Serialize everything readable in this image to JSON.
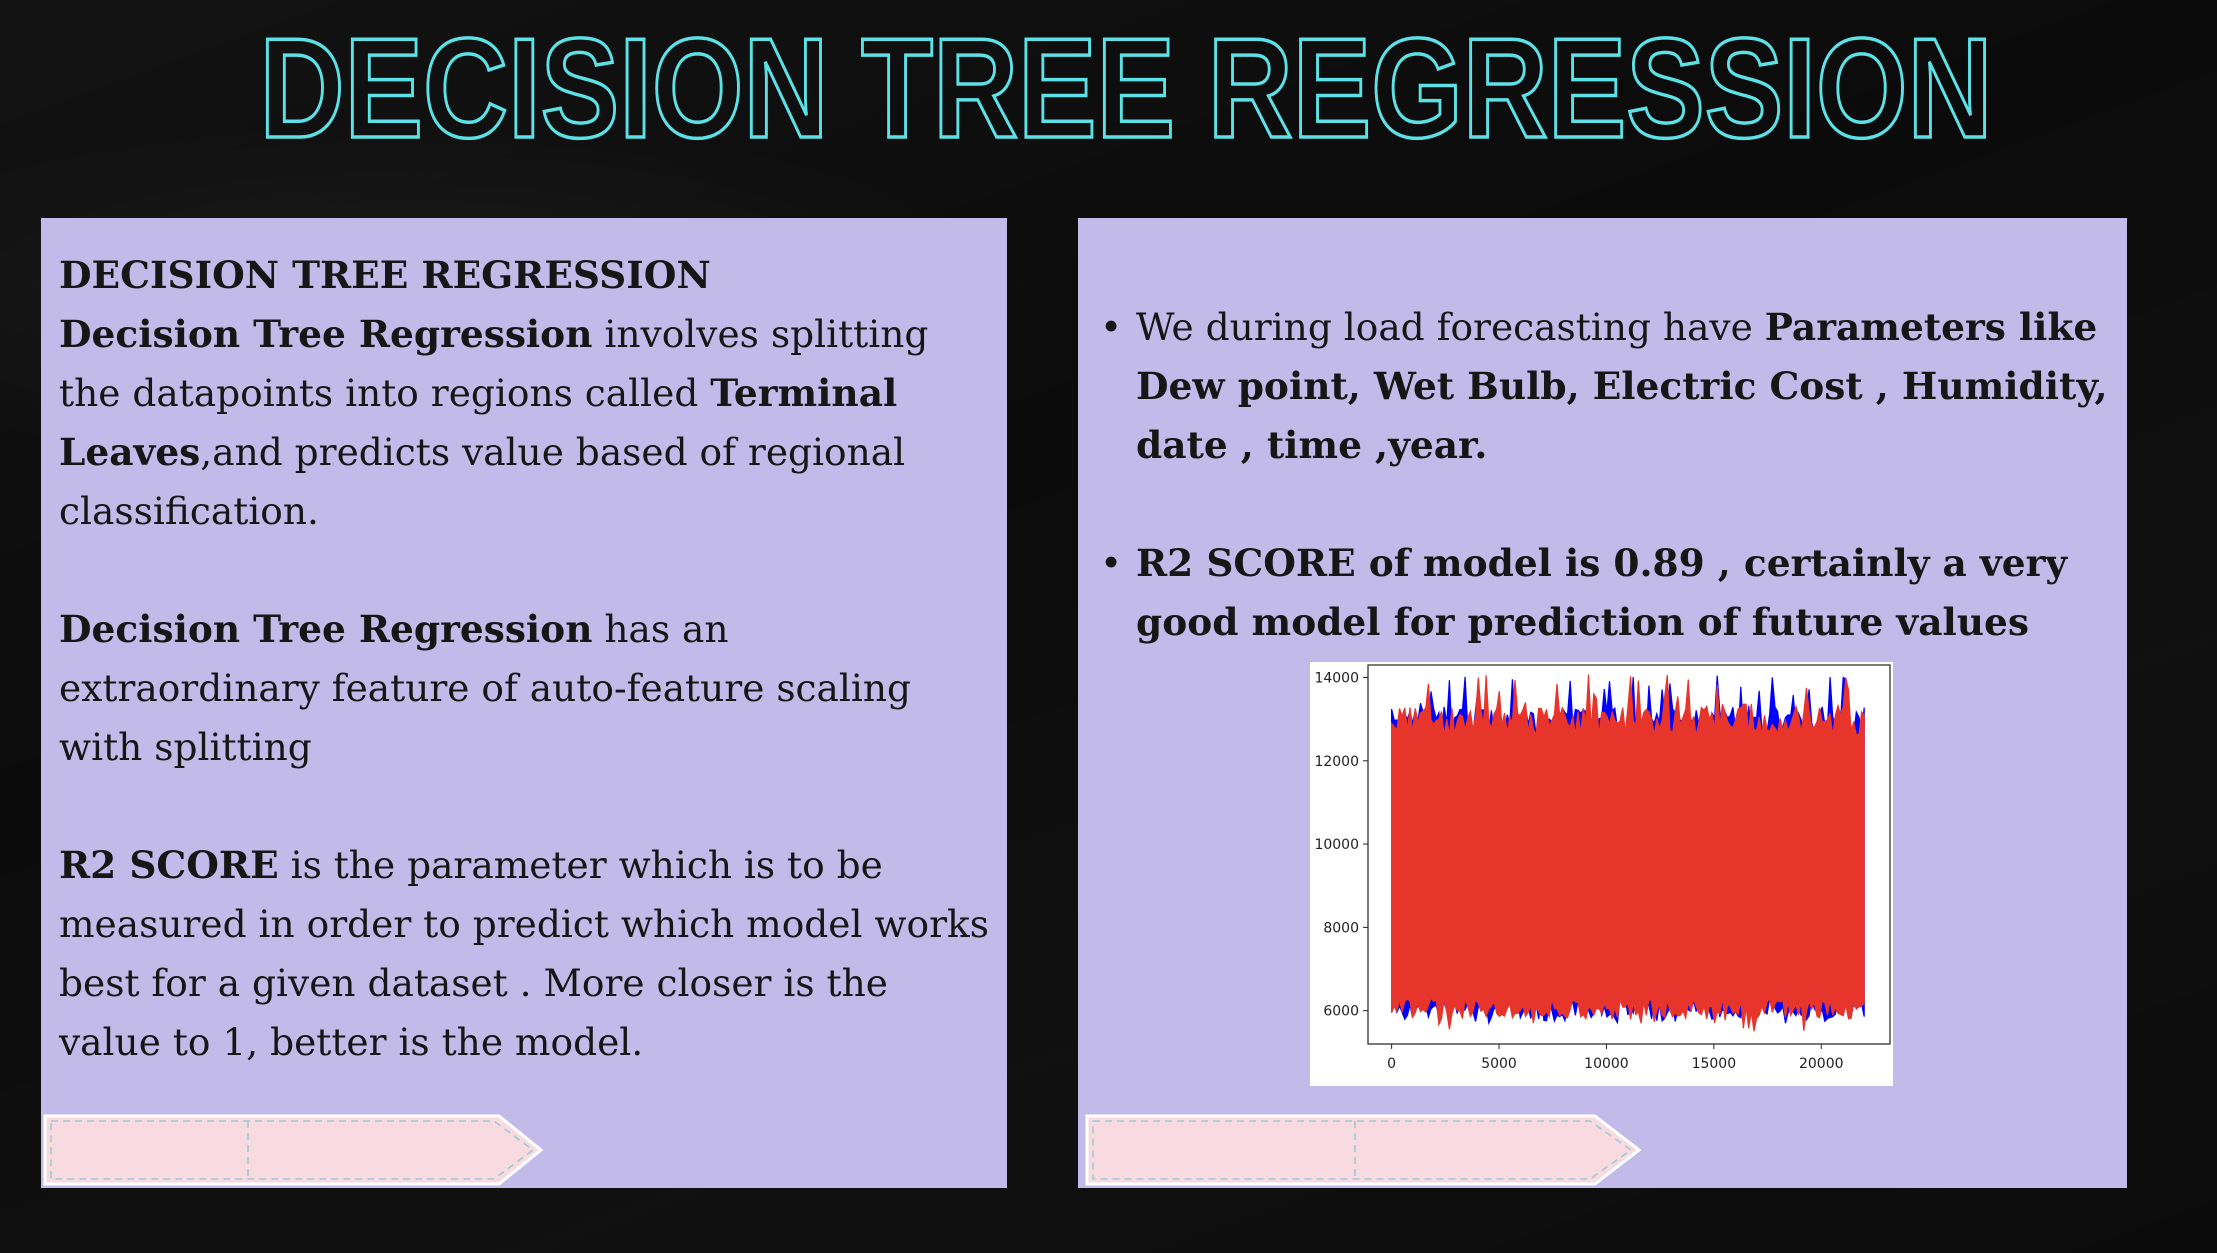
{
  "slide": {
    "title": "DECISION TREE REGRESSION",
    "title_color": "#5ce1e6",
    "panel_color": "#c2bbe9",
    "tag_color": "#f8dbe0"
  },
  "left_panel": {
    "heading": "DECISION TREE REGRESSION",
    "para1_bold": "Decision Tree Regression",
    "para1_text1": " involves splitting the datapoints into regions called ",
    "para1_bold2": "Terminal Leaves",
    "para1_text2": ",and predicts value based of regional classification.",
    "para2_bold": "Decision Tree Regression",
    "para2_text": " has an extraordinary feature of auto-feature scaling with splitting",
    "para3_bold": "R2 SCORE",
    "para3_text": " is the parameter which is to be measured in order to predict which model works best for a given dataset . More closer is the value to 1, better is the model."
  },
  "right_panel": {
    "bullet_glyph": "•",
    "bullet1_text": "We during load forecasting have ",
    "bullet1_bold": "Parameters like Dew point, Wet Bulb, Electric Cost , Humidity, date , time ,year.",
    "bullet2_bold": "R2 SCORE of model is 0.89 , certainly  a very good model  for prediction of future values"
  },
  "chart_data": {
    "type": "line",
    "title": "",
    "xlabel": "",
    "ylabel": "",
    "x_ticks": [
      "0",
      "5000",
      "10000",
      "15000",
      "20000"
    ],
    "y_ticks": [
      "6000",
      "8000",
      "10000",
      "12000",
      "14000"
    ],
    "xlim": [
      -1100,
      23200
    ],
    "ylim": [
      5200,
      14300
    ],
    "series": [
      {
        "color": "#0000ff",
        "values": {
          "x_range": [
            0,
            22000
          ],
          "band_low": 6000,
          "band_high": 13000,
          "min": 5700,
          "max": 14050
        }
      },
      {
        "color": "#e8352b",
        "values": {
          "x_range": [
            0,
            22000
          ],
          "band_low": 6000,
          "band_high": 13000,
          "min": 5500,
          "max": 14100
        }
      }
    ]
  }
}
